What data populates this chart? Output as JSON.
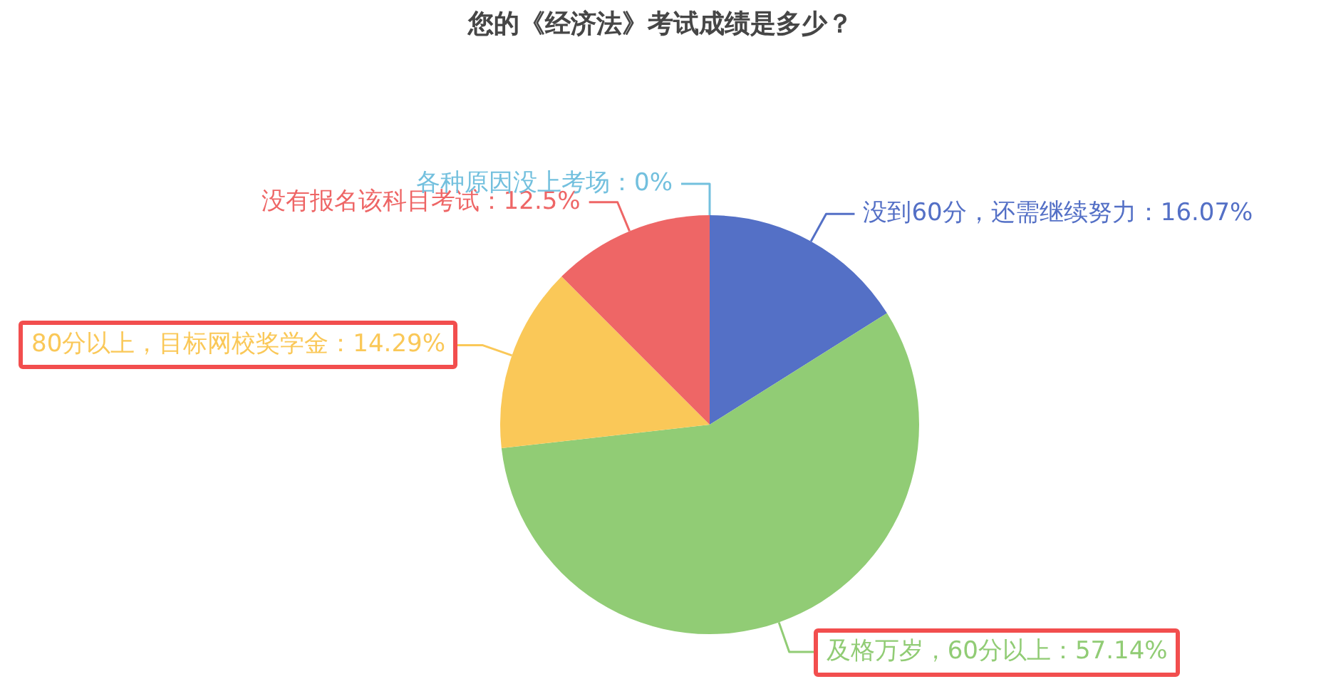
{
  "chart_data": {
    "type": "pie",
    "title": "您的《经济法》考试成绩是多少？",
    "categories": [
      "没到60分，还需继续努力",
      "及格万岁，60分以上",
      "80分以上，目标网校奖学金",
      "没有报名该科目考试",
      "各种原因没上考场"
    ],
    "values": [
      16.07,
      57.14,
      14.29,
      12.5,
      0
    ],
    "colors": [
      "#5470c6",
      "#91cc75",
      "#fac858",
      "#ee6666",
      "#73c0de"
    ],
    "value_labels": [
      "16.07%",
      "57.14%",
      "14.29%",
      "12.5%",
      "0%"
    ]
  }
}
